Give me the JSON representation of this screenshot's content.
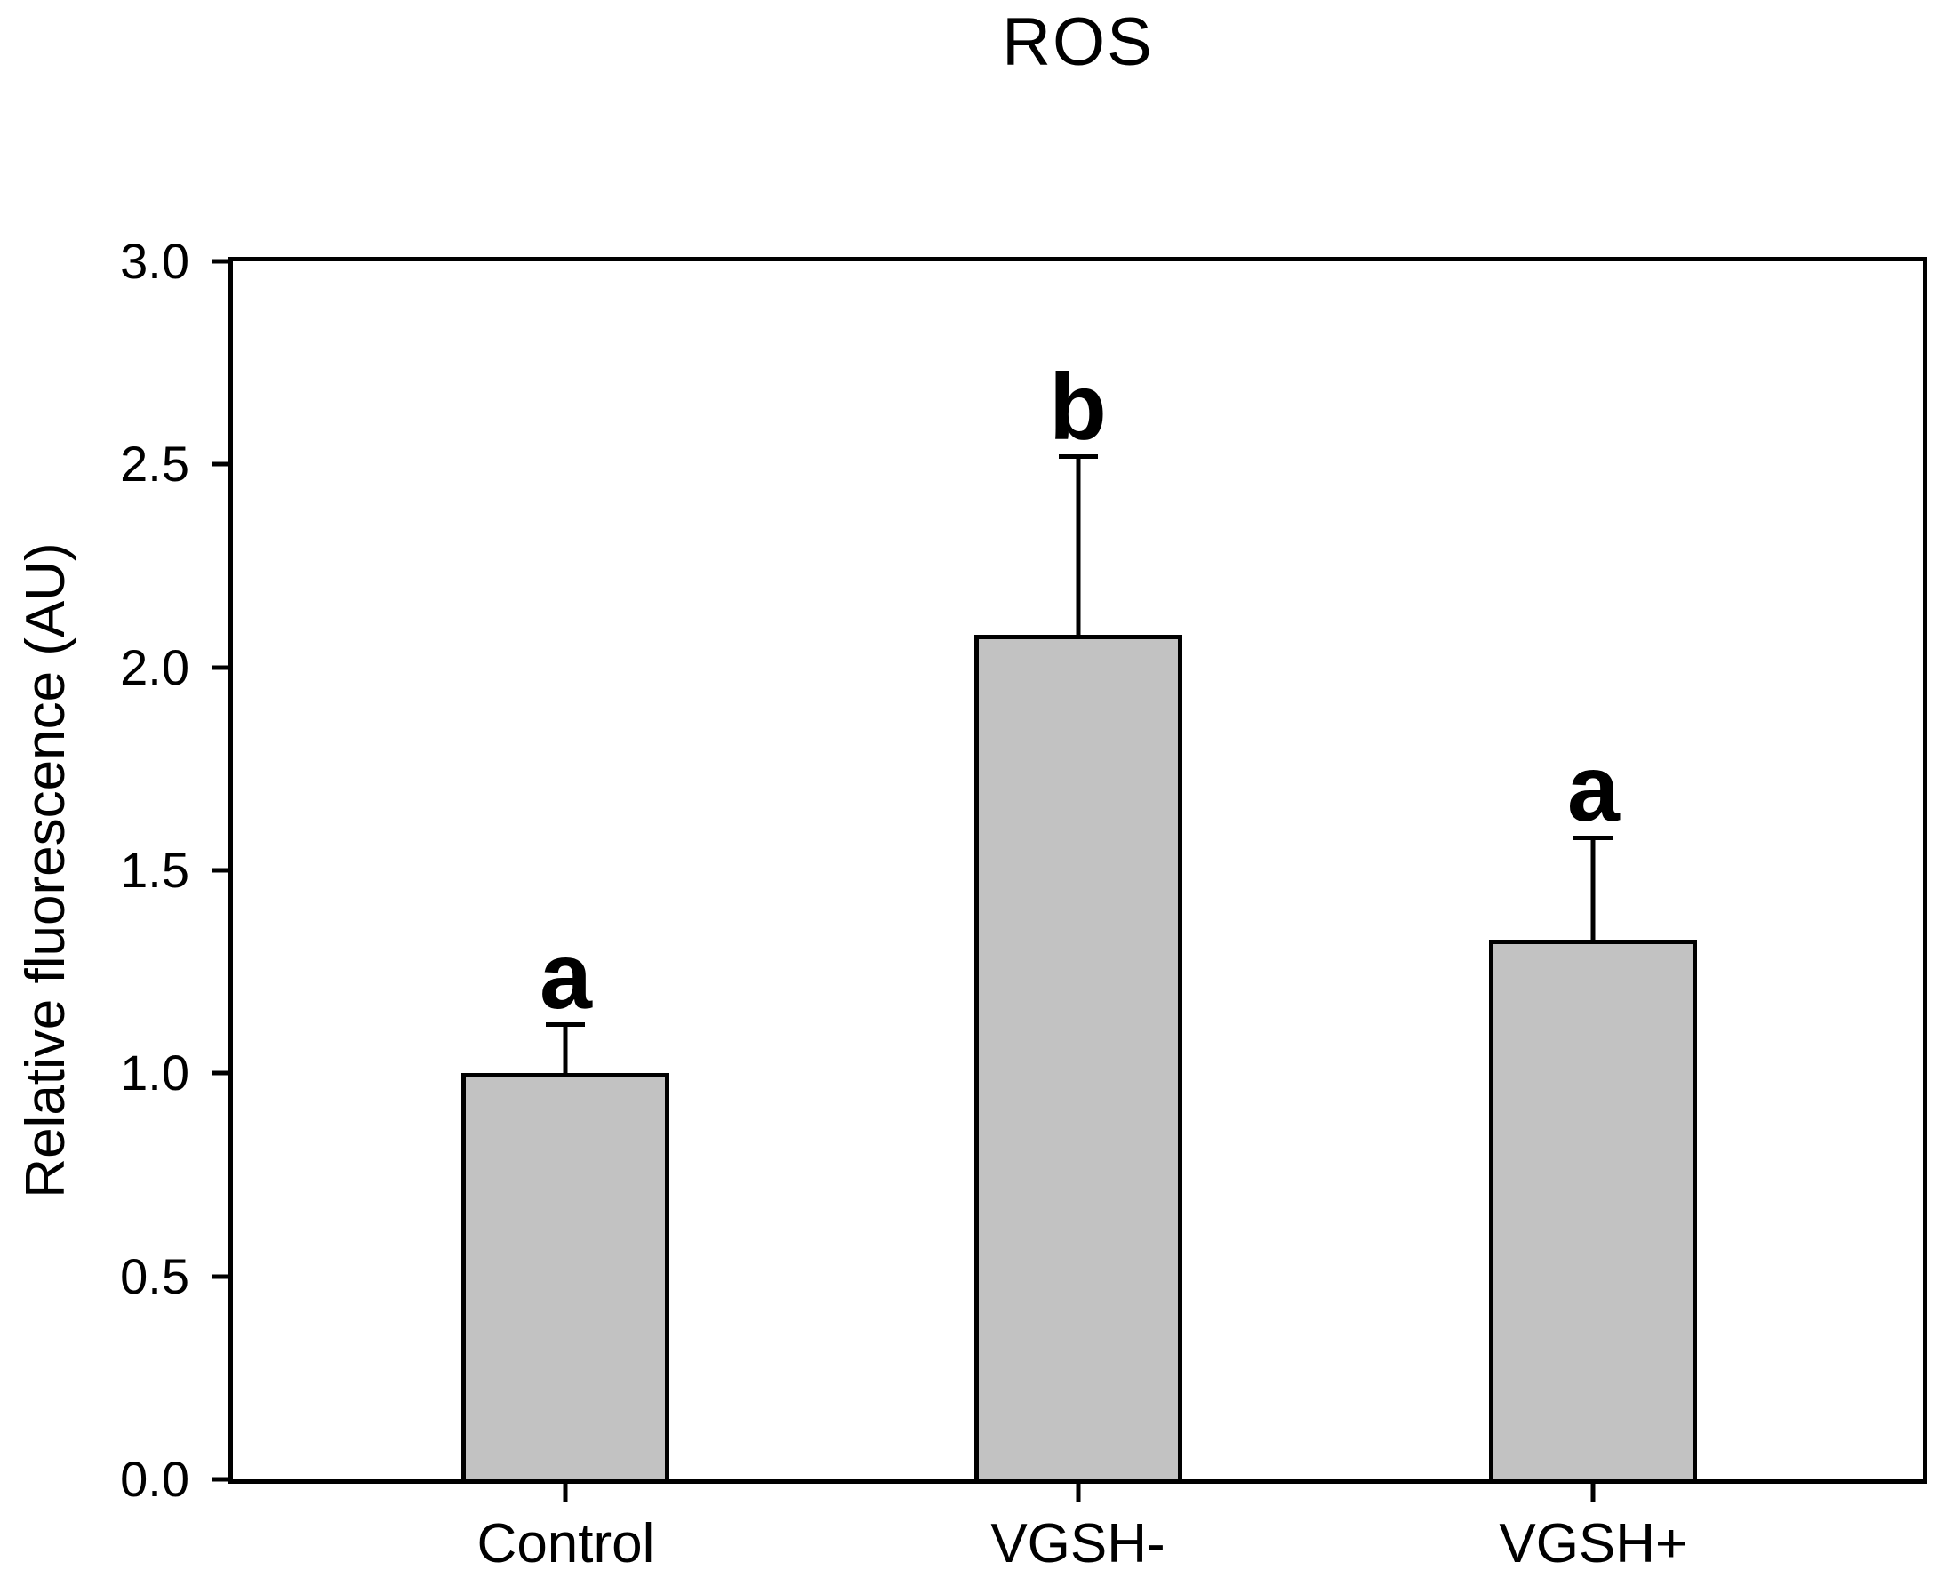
{
  "chart_data": {
    "type": "bar",
    "title": "ROS",
    "xlabel": "",
    "ylabel": "Relative fluorescence (AU)",
    "categories": [
      "Control",
      "VGSH-",
      "VGSH+"
    ],
    "values": [
      1.0,
      2.08,
      1.33
    ],
    "error_upper": [
      0.12,
      0.44,
      0.25
    ],
    "sig_letters": [
      "a",
      "b",
      "a"
    ],
    "ylim": [
      0.0,
      3.0
    ],
    "yticks": [
      0.0,
      0.5,
      1.0,
      1.5,
      2.0,
      2.5,
      3.0
    ],
    "ytick_labels": [
      "0.0",
      "0.5",
      "1.0",
      "1.5",
      "2.0",
      "2.5",
      "3.0"
    ],
    "grid": false,
    "legend": "none",
    "frame": "full-box",
    "bar_fill": "#c2c2c2",
    "bar_border": "#000000",
    "axis_color": "#000000",
    "text_color": "#000000",
    "background": "#ffffff"
  }
}
